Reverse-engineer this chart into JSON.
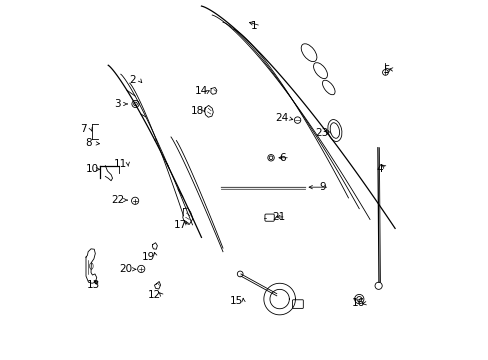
{
  "background_color": "#ffffff",
  "fig_width": 4.89,
  "fig_height": 3.6,
  "dpi": 100,
  "line_color": "#000000",
  "label_fontsize": 7.5
}
